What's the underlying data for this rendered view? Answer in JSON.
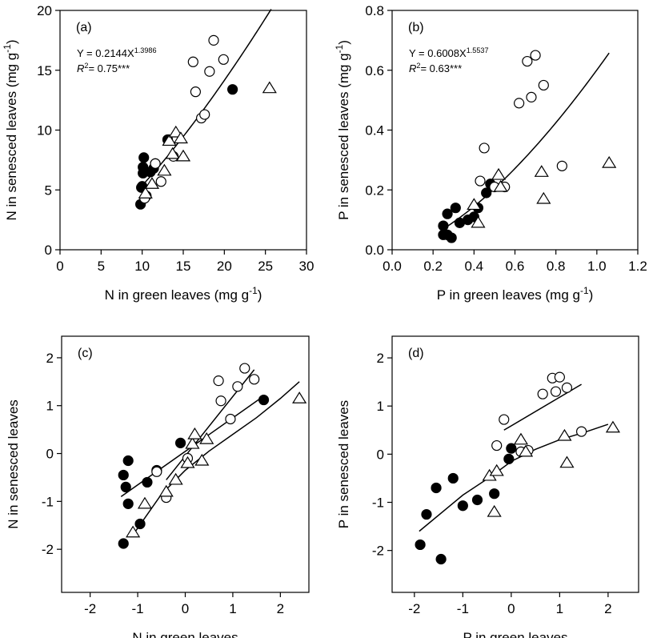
{
  "chart_data": [
    {
      "type": "scatter",
      "panel_label": "(a)",
      "xlabel": [
        {
          "text": "N in green leaves (mg g"
        },
        {
          "sup": "-1"
        },
        {
          "text": ")"
        }
      ],
      "ylabel": [
        {
          "text": "N in senesced leaves (mg g"
        },
        {
          "sup": "-1"
        },
        {
          "text": ")"
        }
      ],
      "annotations": [
        [
          {
            "text": "Y = 0.2144X"
          },
          {
            "sup": "1.3986"
          }
        ],
        [
          {
            "text": "R",
            "italic": true
          },
          {
            "sup": "2"
          },
          {
            "text": "= 0.75***"
          }
        ]
      ],
      "xlim": [
        0,
        30
      ],
      "xticks": [
        0,
        5,
        10,
        15,
        20,
        25,
        30
      ],
      "ylim": [
        0,
        20
      ],
      "yticks": [
        0,
        5,
        10,
        15,
        20
      ],
      "fit": {
        "a": 0.2144,
        "b": 1.3986,
        "xrange": [
          9.7,
          25.7
        ]
      },
      "series": [
        {
          "marker": "filled-circle",
          "color": "#000000",
          "x": [
            9.8,
            9.9,
            10,
            10.1,
            10.1,
            10.2,
            10.5,
            11,
            11.4,
            11.6,
            13.1,
            21
          ],
          "values": [
            3.8,
            5.2,
            5.3,
            6.4,
            6.9,
            7.7,
            4.5,
            6.5,
            6.8,
            7.2,
            9.2,
            13.4
          ]
        },
        {
          "marker": "open-circle",
          "color": "#000000",
          "x": [
            10.3,
            11.6,
            12.3,
            13.8,
            16.2,
            16.5,
            17.2,
            17.6,
            18.2,
            18.7,
            19.9
          ],
          "values": [
            4.3,
            7.2,
            5.7,
            7.8,
            15.7,
            13.2,
            11.0,
            11.3,
            14.9,
            17.5,
            15.9
          ]
        },
        {
          "marker": "open-triangle",
          "color": "#000000",
          "x": [
            10.4,
            11.2,
            12.7,
            13.3,
            13.7,
            14.1,
            14.7,
            15,
            25.5
          ],
          "values": [
            4.7,
            5.5,
            6.6,
            9.1,
            8.0,
            9.8,
            9.3,
            7.8,
            13.5
          ]
        }
      ]
    },
    {
      "type": "scatter",
      "panel_label": "(b)",
      "xlabel": [
        {
          "text": "P in green leaves (mg g"
        },
        {
          "sup": "-1"
        },
        {
          "text": ")"
        }
      ],
      "ylabel": [
        {
          "text": "P in senesced leaves (mg g"
        },
        {
          "sup": "-1"
        },
        {
          "text": ")"
        }
      ],
      "annotations": [
        [
          {
            "text": "Y = 0.6008X"
          },
          {
            "sup": "1.5537"
          }
        ],
        [
          {
            "text": "R",
            "italic": true
          },
          {
            "sup": "2"
          },
          {
            "text": "= 0.63***"
          }
        ]
      ],
      "xlim": [
        0,
        1.2
      ],
      "xticks": [
        {
          "value": 0,
          "label": "0.0"
        },
        0.2,
        0.4,
        0.6,
        0.8,
        {
          "value": 1,
          "label": "1.0"
        },
        1.2
      ],
      "ylim": [
        0,
        0.8
      ],
      "yticks": [
        {
          "value": 0,
          "label": "0.0"
        },
        0.2,
        0.4,
        0.6,
        0.8
      ],
      "fit": {
        "a": 0.6008,
        "b": 1.5537,
        "xrange": [
          0.25,
          1.06
        ]
      },
      "series": [
        {
          "marker": "filled-circle",
          "color": "#000000",
          "x": [
            0.25,
            0.25,
            0.27,
            0.27,
            0.29,
            0.31,
            0.33,
            0.37,
            0.4,
            0.42,
            0.46,
            0.48
          ],
          "values": [
            0.05,
            0.08,
            0.12,
            0.05,
            0.04,
            0.14,
            0.09,
            0.1,
            0.11,
            0.14,
            0.19,
            0.22
          ]
        },
        {
          "marker": "open-circle",
          "color": "#000000",
          "x": [
            0.43,
            0.45,
            0.5,
            0.55,
            0.62,
            0.66,
            0.68,
            0.7,
            0.74,
            0.83
          ],
          "values": [
            0.23,
            0.34,
            0.21,
            0.21,
            0.49,
            0.63,
            0.51,
            0.65,
            0.55,
            0.28
          ]
        },
        {
          "marker": "open-triangle",
          "color": "#000000",
          "x": [
            0.4,
            0.42,
            0.52,
            0.53,
            0.73,
            0.74,
            1.06
          ],
          "values": [
            0.15,
            0.09,
            0.25,
            0.21,
            0.26,
            0.17,
            0.29
          ]
        }
      ]
    },
    {
      "type": "scatter",
      "panel_label": "(c)",
      "xlabel": [
        {
          "text": "N in green leaves"
        }
      ],
      "ylabel": [
        {
          "text": "N in senesced leaves"
        }
      ],
      "xlim": [
        -2.6,
        2.6
      ],
      "xticks": [
        -2,
        -1,
        0,
        1,
        2
      ],
      "ylim": [
        -2.9,
        2.45
      ],
      "yticks": [
        -2,
        -1,
        0,
        1,
        2
      ],
      "fit_lines": [
        {
          "x": [
            -1.35,
            1.65
          ],
          "values": [
            -0.9,
            1.2
          ]
        },
        {
          "x": [
            -0.4,
            1.45
          ],
          "values": [
            -0.55,
            1.75
          ]
        },
        {
          "x": [
            -1.1,
            -0.5,
            0,
            0.5,
            1,
            1.5,
            2,
            2.4
          ],
          "values": [
            -1.7,
            -0.85,
            -0.35,
            0.05,
            0.4,
            0.75,
            1.15,
            1.5
          ]
        }
      ],
      "series": [
        {
          "marker": "filled-circle",
          "color": "#000000",
          "x": [
            -1.3,
            -1.25,
            -1.2,
            -1.2,
            -1.3,
            -0.95,
            -0.8,
            -0.6,
            -0.1,
            1.65
          ],
          "values": [
            -0.45,
            -0.7,
            -0.15,
            -1.05,
            -1.88,
            -1.47,
            -0.6,
            -0.35,
            0.22,
            1.12
          ]
        },
        {
          "marker": "open-circle",
          "color": "#000000",
          "x": [
            -0.6,
            -0.4,
            0.05,
            0.7,
            0.75,
            0.95,
            1.1,
            1.25,
            1.45
          ],
          "values": [
            -0.38,
            -0.92,
            -0.1,
            1.52,
            1.1,
            0.72,
            1.4,
            1.78,
            1.55
          ]
        },
        {
          "marker": "open-triangle",
          "color": "#000000",
          "x": [
            -1.1,
            -0.85,
            -0.4,
            -0.2,
            0.05,
            0.15,
            0.2,
            0.35,
            0.45,
            2.4
          ],
          "values": [
            -1.65,
            -1.05,
            -0.8,
            -0.55,
            -0.2,
            0.2,
            0.4,
            -0.15,
            0.3,
            1.15
          ]
        }
      ]
    },
    {
      "type": "scatter",
      "panel_label": "(d)",
      "xlabel": [
        {
          "text": "P in green leaves"
        }
      ],
      "ylabel": [
        {
          "text": "P in senesced leaves"
        }
      ],
      "xlim": [
        -2.46,
        2.63
      ],
      "xticks": [
        -2,
        -1,
        0,
        1,
        2
      ],
      "ylim": [
        -2.87,
        2.45
      ],
      "yticks": [
        -2,
        -1,
        0,
        1,
        2
      ],
      "fit_lines": [
        {
          "x": [
            -0.15,
            1.45
          ],
          "values": [
            0.5,
            1.45
          ]
        },
        {
          "x": [
            -1.9,
            -1,
            -0.4,
            0,
            0.5,
            1,
            1.5,
            2
          ],
          "values": [
            -1.6,
            -0.85,
            -0.45,
            -0.15,
            0.1,
            0.3,
            0.45,
            0.62
          ]
        }
      ],
      "series": [
        {
          "marker": "filled-circle",
          "color": "#000000",
          "x": [
            -1.88,
            -1.75,
            -1.55,
            -1.45,
            -1.2,
            -1.0,
            -0.7,
            -0.35,
            -0.05,
            0.0
          ],
          "values": [
            -1.88,
            -1.25,
            -0.7,
            -2.18,
            -0.5,
            -1.07,
            -0.95,
            -0.82,
            -0.1,
            0.12
          ]
        },
        {
          "marker": "open-circle",
          "color": "#000000",
          "x": [
            -0.3,
            -0.15,
            0.2,
            0.35,
            0.65,
            0.85,
            0.92,
            1.0,
            1.15,
            1.45
          ],
          "values": [
            0.18,
            0.72,
            0.05,
            0.08,
            1.25,
            1.58,
            1.3,
            1.6,
            1.38,
            0.47
          ]
        },
        {
          "marker": "open-triangle",
          "color": "#000000",
          "x": [
            -0.45,
            -0.35,
            -0.3,
            0.2,
            0.3,
            1.1,
            1.15,
            2.1
          ],
          "values": [
            -0.45,
            -1.2,
            -0.35,
            0.3,
            0.05,
            0.38,
            -0.18,
            0.55
          ]
        }
      ]
    }
  ]
}
